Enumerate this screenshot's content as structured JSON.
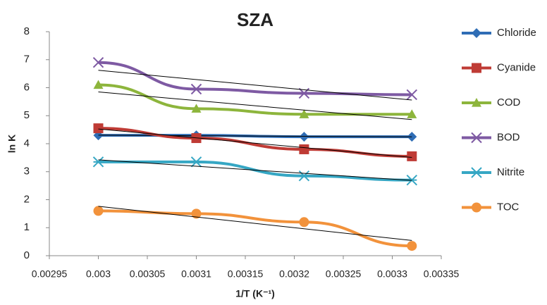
{
  "chart_data": {
    "type": "line",
    "title": "SZA",
    "xlabel": "1/T (K⁻¹)",
    "ylabel": "ln K",
    "x": [
      0.003,
      0.0031,
      0.00321,
      0.00332
    ],
    "xlim": [
      0.00295,
      0.00335
    ],
    "xticks": [
      0.00295,
      0.003,
      0.00305,
      0.0031,
      0.00315,
      0.0032,
      0.00325,
      0.0033,
      0.00335
    ],
    "ylim": [
      0,
      8
    ],
    "yticks": [
      0,
      1,
      2,
      3,
      4,
      5,
      6,
      7,
      8
    ],
    "grid": false,
    "trendline": true,
    "legend": "right",
    "series": [
      {
        "name": "Chloride",
        "color": "#2f6db5",
        "marker": "diamond",
        "values": [
          4.3,
          4.3,
          4.25,
          4.25
        ]
      },
      {
        "name": "Cyanide",
        "color": "#bf3b35",
        "marker": "square",
        "values": [
          4.55,
          4.2,
          3.8,
          3.55
        ]
      },
      {
        "name": "COD",
        "color": "#8db53c",
        "marker": "triangle",
        "values": [
          6.1,
          5.25,
          5.05,
          5.05
        ]
      },
      {
        "name": "BOD",
        "color": "#7e5aa3",
        "marker": "x",
        "values": [
          6.9,
          5.95,
          5.8,
          5.75
        ]
      },
      {
        "name": "Nitrite",
        "color": "#36a7c4",
        "marker": "asterisk",
        "values": [
          3.35,
          3.35,
          2.85,
          2.7
        ]
      },
      {
        "name": "TOC",
        "color": "#f2923b",
        "marker": "circle",
        "values": [
          1.6,
          1.5,
          1.2,
          0.35
        ]
      }
    ]
  }
}
